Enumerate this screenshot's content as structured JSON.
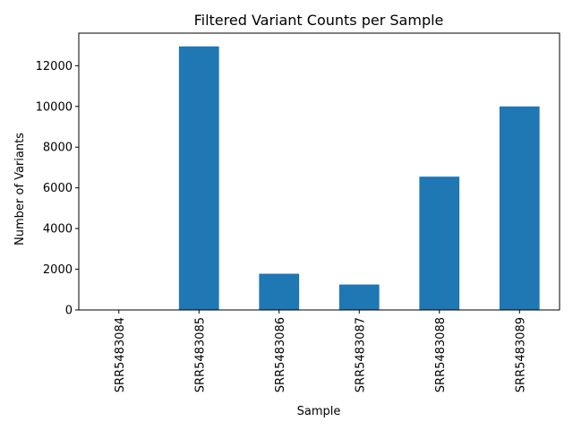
{
  "chart_data": {
    "type": "bar",
    "title": "Filtered Variant Counts per Sample",
    "xlabel": "Sample",
    "ylabel": "Number of Variants",
    "categories": [
      "SRR5483084",
      "SRR5483085",
      "SRR5483086",
      "SRR5483087",
      "SRR5483088",
      "SRR5483089"
    ],
    "values": [
      0,
      12950,
      1780,
      1250,
      6550,
      10000
    ],
    "ylim": [
      0,
      13600
    ],
    "yticks": [
      0,
      2000,
      4000,
      6000,
      8000,
      10000,
      12000
    ],
    "grid": false,
    "legend": "none",
    "bar_color": "#1f77b4"
  }
}
